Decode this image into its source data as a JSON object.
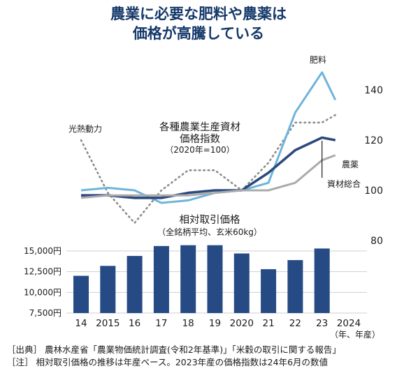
{
  "title": {
    "line1": "農業に必要な肥料や農薬は",
    "line2": "価格が高騰している"
  },
  "chart_data": [
    {
      "type": "line",
      "title": "各種農業生産資材\n価格指数",
      "subtitle": "（2020年=100）",
      "ylim": [
        80,
        150
      ],
      "yticks": [
        80,
        100,
        120,
        140
      ],
      "x": [
        2013.5,
        2014,
        2015,
        2016,
        2017,
        2018,
        2019,
        2020,
        2021,
        2022,
        2023,
        2023.5
      ],
      "series": [
        {
          "name": "光熱動力",
          "color": "#8c8c8c",
          "dashed": true,
          "values": [
            null,
            120,
            99,
            87,
            100,
            108,
            108,
            100,
            111,
            127,
            127,
            130
          ]
        },
        {
          "name": "肥料",
          "color": "#6fb4da",
          "dashed": false,
          "values": [
            null,
            100,
            101,
            100,
            95,
            96,
            99,
            100,
            103,
            131,
            147,
            136
          ]
        },
        {
          "name": "農薬",
          "color": "#2c4a7e",
          "dashed": false,
          "values": [
            null,
            98,
            98,
            97,
            97,
            99,
            100,
            100,
            107,
            116,
            121,
            120
          ]
        },
        {
          "name": "資材総合",
          "color": "#ababab",
          "dashed": false,
          "values": [
            null,
            97,
            98,
            98,
            98,
            98,
            99,
            100,
            100,
            103,
            112,
            114
          ]
        }
      ]
    },
    {
      "type": "bar",
      "title": "相対取引価格",
      "subtitle": "（全銘柄平均、玄米60kg）",
      "categories": [
        "14",
        "2015",
        "16",
        "17",
        "18",
        "19",
        "2020",
        "21",
        "22",
        "23",
        "2024"
      ],
      "values": [
        12000,
        13200,
        14400,
        15600,
        15700,
        15700,
        14700,
        12800,
        13900,
        15300,
        null
      ],
      "yticks": [
        7500,
        10000,
        12500,
        15000
      ],
      "ytick_labels": [
        "7,500円",
        "10,000円",
        "12,500円",
        "15,000円"
      ],
      "ylim": [
        7500,
        16500
      ],
      "xlabel": "（年、年産）",
      "color": "#254a84"
    }
  ],
  "notes": {
    "source": "［出典］ 農林水産省「農業物価統計調査(令和2年基準)」「米穀の取引に関する報告」",
    "note": "［注］ 相対取引価格の推移は年産ベース。2023年産の価格指数は24年6月の数値"
  }
}
